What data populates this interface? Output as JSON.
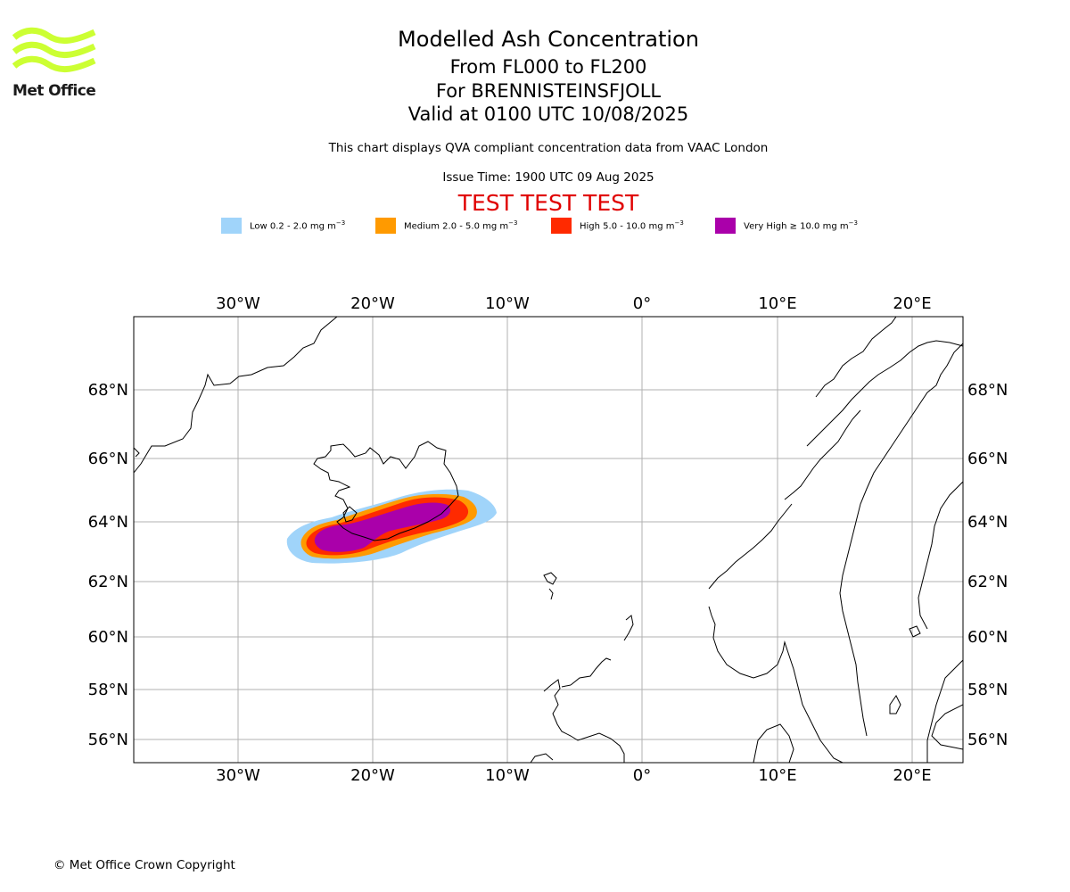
{
  "logo": {
    "text": "Met Office",
    "color": "#ccff33"
  },
  "header": {
    "title": "Modelled Ash Concentration",
    "levels": "From FL000 to FL200",
    "volcano": "For BRENNISTEINSFJOLL",
    "valid": "Valid at 0100 UTC 10/08/2025",
    "note": "This chart displays QVA compliant concentration data from VAAC London",
    "issue_time": "Issue Time: 1900 UTC 09 Aug 2025",
    "test_banner": "TEST TEST TEST"
  },
  "legend": [
    {
      "label": "Low 0.2 - 2.0 mg m",
      "color": "#a0d4fa"
    },
    {
      "label": "Medium 2.0 - 5.0 mg m",
      "color": "#ff9a00"
    },
    {
      "label": "High 5.0 - 10.0 mg m",
      "color": "#ff2a00"
    },
    {
      "label": "Very High ≥ 10.0 mg m",
      "color": "#aa00aa"
    }
  ],
  "legend_unit_exponent": "−3",
  "map": {
    "lon_ticks": [
      "30°W",
      "20°W",
      "10°W",
      "0°",
      "10°E",
      "20°E"
    ],
    "lat_ticks": [
      "68°N",
      "66°N",
      "64°N",
      "62°N",
      "60°N",
      "58°N",
      "56°N"
    ],
    "grid": true
  },
  "footer": {
    "copyright": "© Met Office Crown Copyright"
  }
}
